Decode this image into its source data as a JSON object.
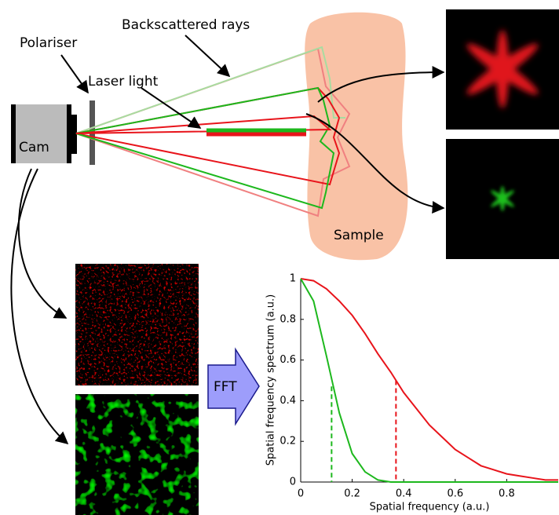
{
  "diagram": {
    "backscattered_rays": "Backscattered rays",
    "polariser": "Polariser",
    "laser_light": "Laser light",
    "camera": "Cam",
    "sample": "Sample",
    "transform": "FFT"
  },
  "chart_data": {
    "type": "line",
    "x_label": "Spatial frequency (a.u.)",
    "y_label": "Spatial frequency spectrum (a.u.)",
    "x": [
      0,
      0.05,
      0.1,
      0.15,
      0.2,
      0.25,
      0.3,
      0.35,
      0.4,
      0.45,
      0.5,
      0.55,
      0.6,
      0.65,
      0.7,
      0.75,
      0.8,
      0.85,
      0.9,
      0.95,
      1.0
    ],
    "series": [
      {
        "color": "#e8141b",
        "values": [
          1,
          0.99,
          0.95,
          0.89,
          0.82,
          0.73,
          0.63,
          0.54,
          0.44,
          0.36,
          0.28,
          0.22,
          0.16,
          0.12,
          0.08,
          0.06,
          0.04,
          0.03,
          0.02,
          0.01,
          0.01
        ]
      },
      {
        "color": "#1db81d",
        "values": [
          1,
          0.89,
          0.62,
          0.34,
          0.14,
          0.05,
          0.01,
          0,
          0,
          0,
          0,
          0,
          0,
          0,
          0,
          0,
          0,
          0,
          0,
          0,
          0
        ]
      }
    ],
    "markers": [
      {
        "x": 0.37,
        "y": 0.5,
        "color": "#e8141b"
      },
      {
        "x": 0.12,
        "y": 0.47,
        "color": "#1db81d"
      }
    ],
    "xlim": [
      0,
      1
    ],
    "ylim": [
      0,
      1
    ],
    "xticks": [
      0,
      0.2,
      0.4,
      0.6,
      0.8
    ],
    "yticks": [
      0,
      0.2,
      0.4,
      0.6,
      0.8,
      1
    ]
  }
}
